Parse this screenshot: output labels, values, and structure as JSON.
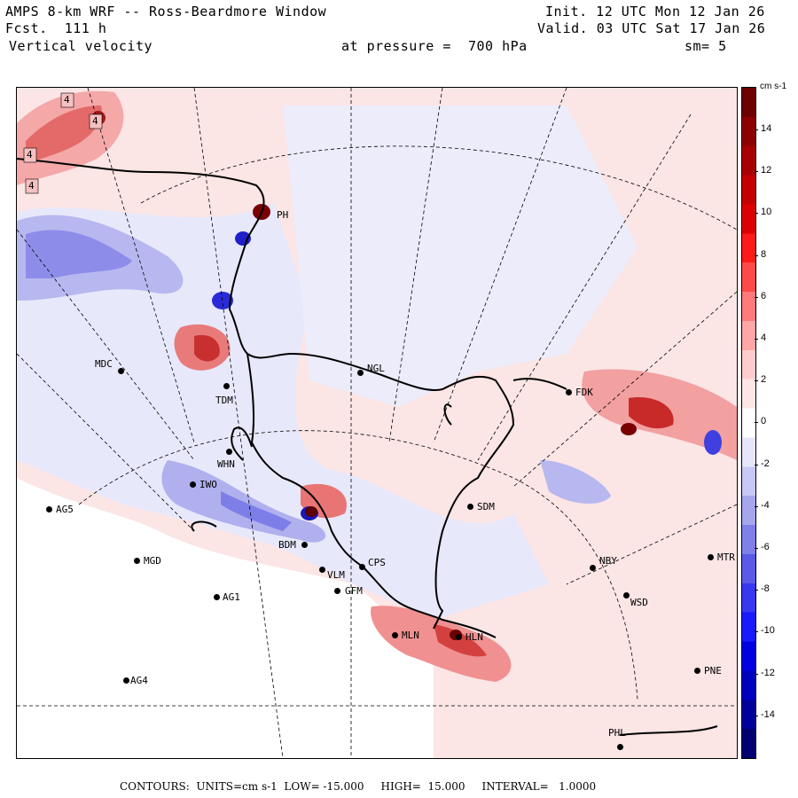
{
  "header": {
    "model": "AMPS 8-km WRF -- Ross-Beardmore Window",
    "fcst": "Fcst.  111 h",
    "field": "Vertical velocity",
    "init": "Init. 12 UTC Mon 12 Jan 26",
    "valid": "Valid. 03 UTC Sat 17 Jan 26",
    "pressure": "at pressure =  700 hPa",
    "smoothing": "sm= 5"
  },
  "stations": [
    {
      "code": "MDC"
    },
    {
      "code": "TDM"
    },
    {
      "code": "NGL"
    },
    {
      "code": "FDK"
    },
    {
      "code": "WHN"
    },
    {
      "code": "IWO"
    },
    {
      "code": "AG5"
    },
    {
      "code": "SDM"
    },
    {
      "code": "BDM"
    },
    {
      "code": "MGD"
    },
    {
      "code": "NBY"
    },
    {
      "code": "MTR"
    },
    {
      "code": "AG1"
    },
    {
      "code": "WSD"
    },
    {
      "code": "GFM"
    },
    {
      "code": "MLN"
    },
    {
      "code": "HLN"
    },
    {
      "code": "AG4"
    },
    {
      "code": "PNE"
    },
    {
      "code": "PHL"
    },
    {
      "code": "PH"
    },
    {
      "code": "VLM"
    },
    {
      "code": "CPS"
    }
  ],
  "map_labels": {
    "contour_box": "4"
  },
  "colorbar": {
    "unit": "cm s-1",
    "ticks": [
      "14",
      "12",
      "10",
      "8",
      "6",
      "4",
      "2",
      "0",
      "-2",
      "-4",
      "-6",
      "-8",
      "-10",
      "-12",
      "-14"
    ],
    "colors": [
      "#6e0000",
      "#8e0000",
      "#a80000",
      "#c40000",
      "#dd0000",
      "#ff1a1a",
      "#ff4a4a",
      "#ff7a7a",
      "#ffa6a6",
      "#ffcccc",
      "#fde6e6",
      "#ffffff",
      "#e6e6fa",
      "#c8c8f5",
      "#a6a6ef",
      "#8080ea",
      "#5a5ae6",
      "#3838f0",
      "#1a1aff",
      "#0000e0",
      "#0000c0",
      "#00009a",
      "#000070"
    ]
  },
  "footer": {
    "contours": "CONTOURS:  UNITS=cm s-1  LOW= -15.000     HIGH=  15.000     INTERVAL=   1.0000"
  }
}
